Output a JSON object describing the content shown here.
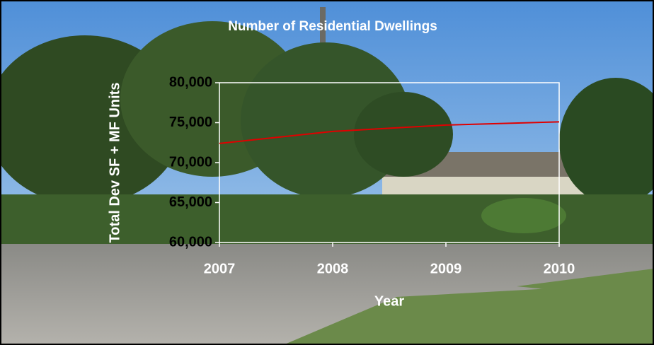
{
  "chart_data": {
    "type": "line",
    "title": "Number of Residential Dwellings",
    "x_label": "Year",
    "y_label": "Total Dev SF + MF Units",
    "categories": [
      "2007",
      "2008",
      "2009",
      "2010"
    ],
    "series": [
      {
        "name": "Total Dev SF + MF Units",
        "color": "#e00000",
        "values": [
          72400,
          73900,
          74700,
          75100
        ]
      }
    ],
    "ylim": [
      60000,
      80000
    ],
    "yticks": [
      {
        "value": 60000,
        "label": "60,000"
      },
      {
        "value": 65000,
        "label": "65,000"
      },
      {
        "value": 70000,
        "label": "70,000"
      },
      {
        "value": 75000,
        "label": "75,000"
      },
      {
        "value": 80000,
        "label": "80,000"
      }
    ],
    "grid": false
  }
}
